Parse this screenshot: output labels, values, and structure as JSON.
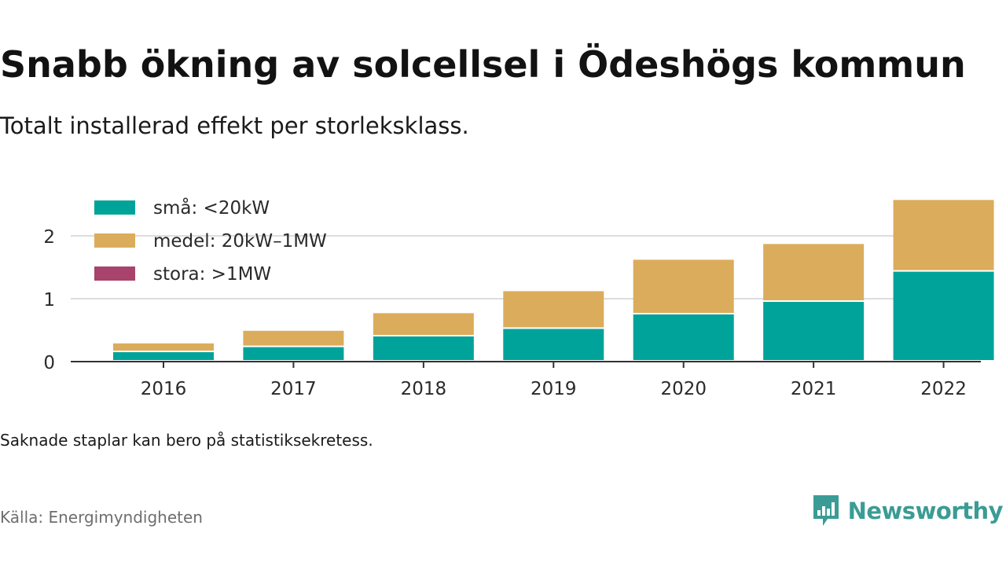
{
  "header": {
    "title": "Snabb ökning av solcellsel i Ödeshögs kommun",
    "subtitle": "Totalt installerad effekt per storleksklass."
  },
  "footer": {
    "note": "Saknade staplar kan bero på statistiksekretess.",
    "source": "Källa: Energimyndigheten",
    "brand": "Newsworthy"
  },
  "colors": {
    "small": "#00a39a",
    "medium": "#dbac5b",
    "large": "#a8436b",
    "axis": "#333333",
    "grid": "#dddddd",
    "brand": "#3a9c95"
  },
  "chart_data": {
    "type": "bar",
    "stacked": true,
    "title": "Snabb ökning av solcellsel i Ödeshögs kommun",
    "subtitle": "Totalt installerad effekt per storleksklass.",
    "categories": [
      "2016",
      "2017",
      "2018",
      "2019",
      "2020",
      "2021",
      "2022"
    ],
    "series": [
      {
        "name": "små: <20kW",
        "color": "#00a39a",
        "values": [
          0.15,
          0.23,
          0.4,
          0.52,
          0.75,
          0.95,
          1.43
        ]
      },
      {
        "name": "medel: 20kW–1MW",
        "color": "#dbac5b",
        "values": [
          0.14,
          0.26,
          0.37,
          0.6,
          0.87,
          0.92,
          1.14
        ]
      },
      {
        "name": "stora: >1MW",
        "color": "#a8436b",
        "values": [
          0,
          0,
          0,
          0,
          0,
          0,
          0
        ]
      }
    ],
    "yticks": [
      0,
      1,
      2
    ],
    "ylim": [
      0,
      2.65
    ],
    "xlabel": "",
    "ylabel": "",
    "grid": true,
    "legend": "top-left"
  }
}
